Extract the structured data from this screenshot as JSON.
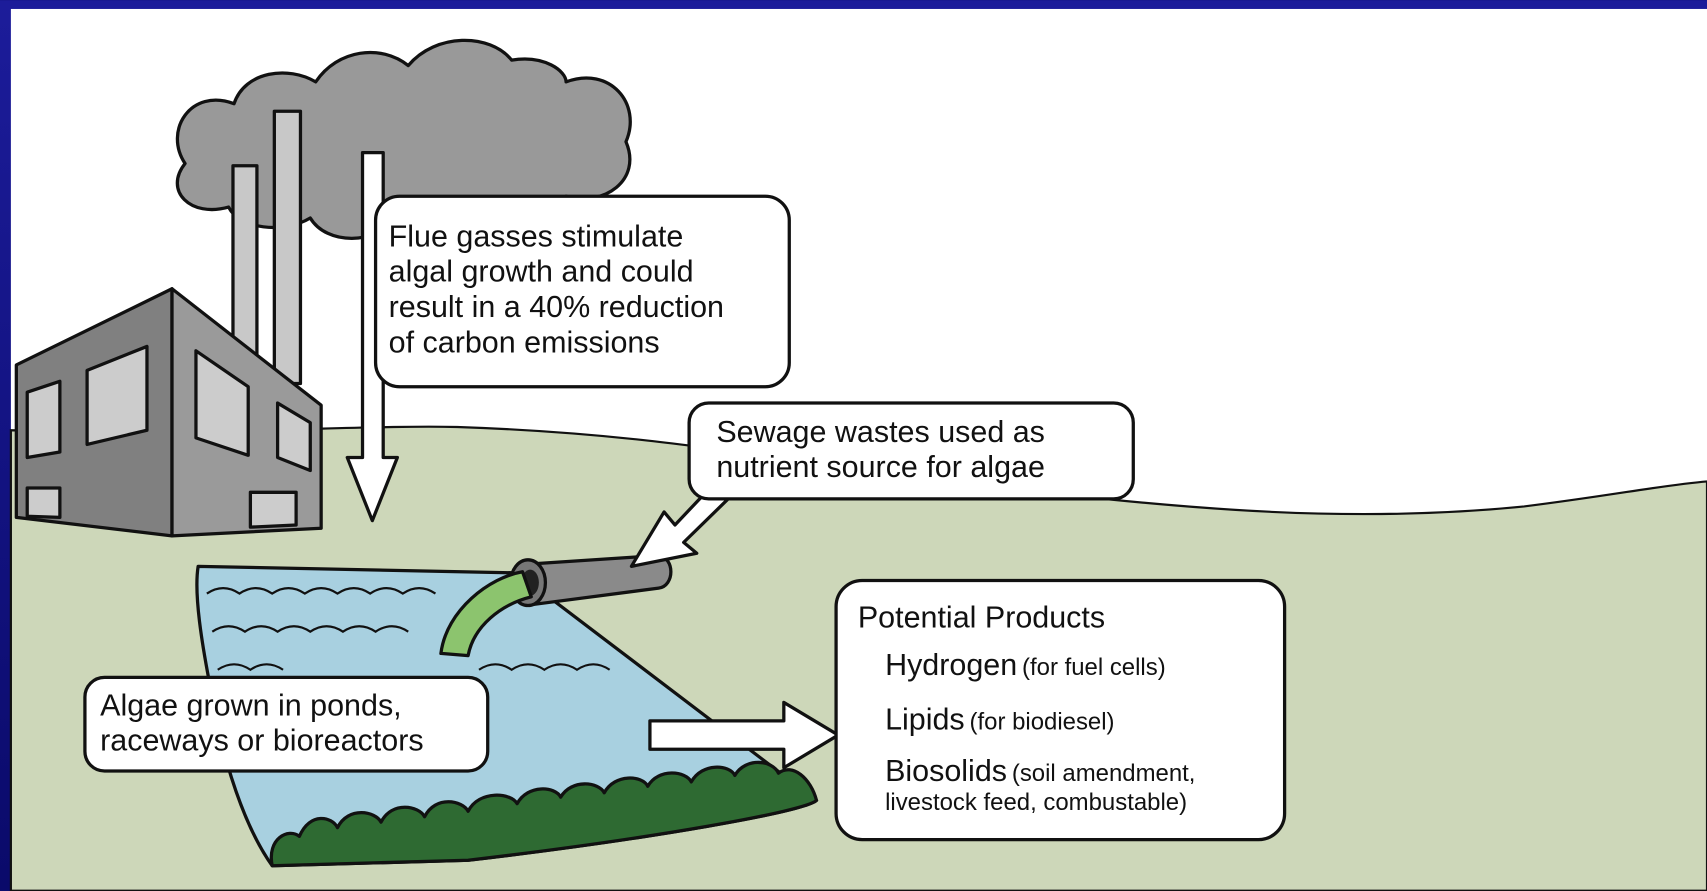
{
  "callouts": {
    "flue": {
      "lines": [
        "Flue gasses stimulate",
        "algal growth and could",
        "result in a 40% reduction",
        "of carbon emissions"
      ]
    },
    "sewage": {
      "lines": [
        "Sewage wastes used as",
        "nutrient source for algae"
      ]
    },
    "algae": {
      "lines": [
        "Algae grown in ponds,",
        "raceways or bioreactors"
      ]
    },
    "products": {
      "title": "Potential Products",
      "items": [
        {
          "name": "Hydrogen",
          "note": "(for fuel cells)"
        },
        {
          "name": "Lipids",
          "note": "(for biodiesel)"
        },
        {
          "name": "Biosolids",
          "note": "(soil amendment,",
          "note2": "livestock feed, combustable)"
        }
      ]
    }
  }
}
